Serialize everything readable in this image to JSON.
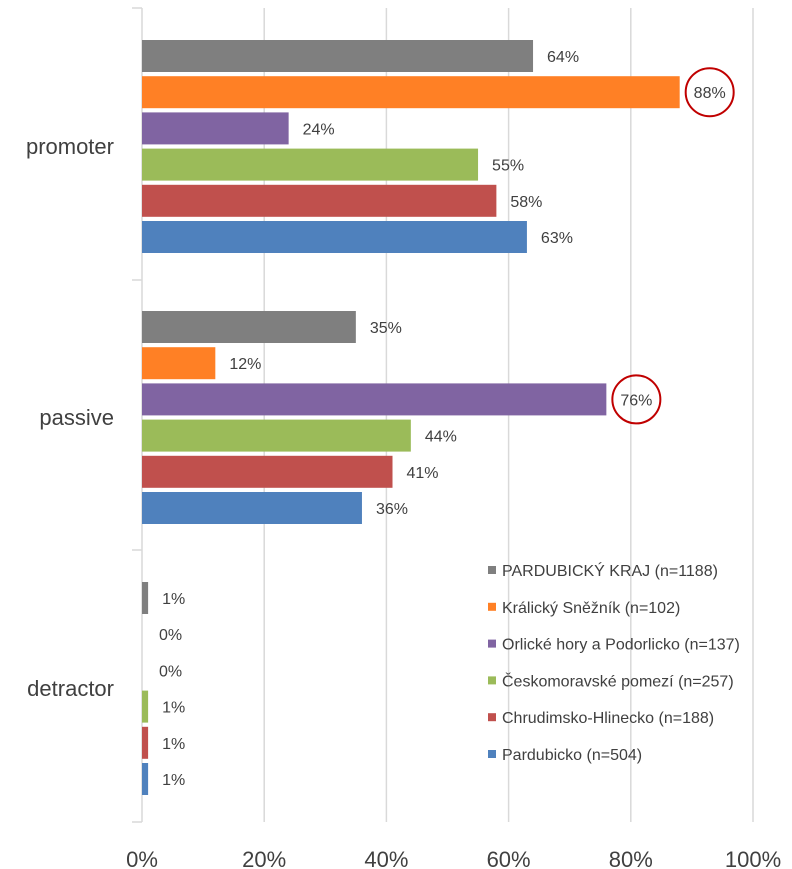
{
  "chart_data": {
    "type": "bar",
    "orientation": "horizontal",
    "categories": [
      "promoter",
      "passive",
      "detractor"
    ],
    "series": [
      {
        "name": "PARDUBICKÝ KRAJ (n=1188)",
        "color": "#7f7f7f",
        "values": [
          64,
          35,
          1
        ]
      },
      {
        "name": "Králický Sněžník (n=102)",
        "color": "#ff8025",
        "values": [
          88,
          12,
          0
        ]
      },
      {
        "name": "Orlické hory a Podorlicko (n=137)",
        "color": "#8064a2",
        "values": [
          24,
          76,
          0
        ]
      },
      {
        "name": "Českomoravské pomezí (n=257)",
        "color": "#9bbb59",
        "values": [
          55,
          44,
          1
        ]
      },
      {
        "name": "Chrudimsko-Hlinecko (n=188)",
        "color": "#c0504d",
        "values": [
          58,
          41,
          1
        ]
      },
      {
        "name": "Pardubicko (n=504)",
        "color": "#4f81bd",
        "values": [
          63,
          36,
          1
        ]
      }
    ],
    "xlim": [
      0,
      100
    ],
    "x_ticks": [
      "0%",
      "20%",
      "40%",
      "60%",
      "80%",
      "100%"
    ],
    "grid": true,
    "legend_position": "bottom-right",
    "highlighted": [
      {
        "category": "promoter",
        "series": "Králický Sněžník (n=102)",
        "label": "88%"
      },
      {
        "category": "passive",
        "series": "Orlické hory a Podorlicko (n=137)",
        "label": "76%"
      }
    ],
    "highlight_color": "#c00000"
  }
}
